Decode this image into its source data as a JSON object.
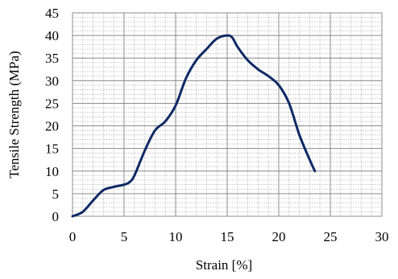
{
  "chart_data": {
    "type": "line",
    "title": "",
    "xlabel": "Strain [%]",
    "ylabel": "Tensile Strength (MPa)",
    "xlim": [
      0,
      30
    ],
    "ylim": [
      0,
      45
    ],
    "x_ticks": [
      0,
      5,
      10,
      15,
      20,
      25,
      30
    ],
    "y_ticks": [
      0,
      5,
      10,
      15,
      20,
      25,
      30,
      35,
      40,
      45
    ],
    "x_tick_labels": [
      "0",
      "5",
      "10",
      "15",
      "20",
      "25",
      "30"
    ],
    "y_tick_labels": [
      "0",
      "5",
      "10",
      "15",
      "20",
      "25",
      "30",
      "35",
      "40",
      "45"
    ],
    "grid": true,
    "minor_grid": true,
    "legend": "none",
    "line_color": "#0d2a66",
    "series": [
      {
        "x": [
          0,
          1,
          2,
          3,
          4,
          5,
          5.5,
          6,
          7,
          8,
          9,
          10,
          11,
          12,
          13,
          14,
          15,
          15.5,
          16,
          17,
          18,
          19,
          20,
          21,
          22,
          23,
          23.5
        ],
        "y": [
          0,
          1,
          3.5,
          5.8,
          6.5,
          7,
          7.5,
          9,
          14.5,
          19,
          21,
          24.5,
          30.5,
          34.5,
          37,
          39.3,
          40,
          39.5,
          37.5,
          34.5,
          32.5,
          31,
          29,
          25,
          18,
          12.5,
          10
        ]
      }
    ]
  }
}
